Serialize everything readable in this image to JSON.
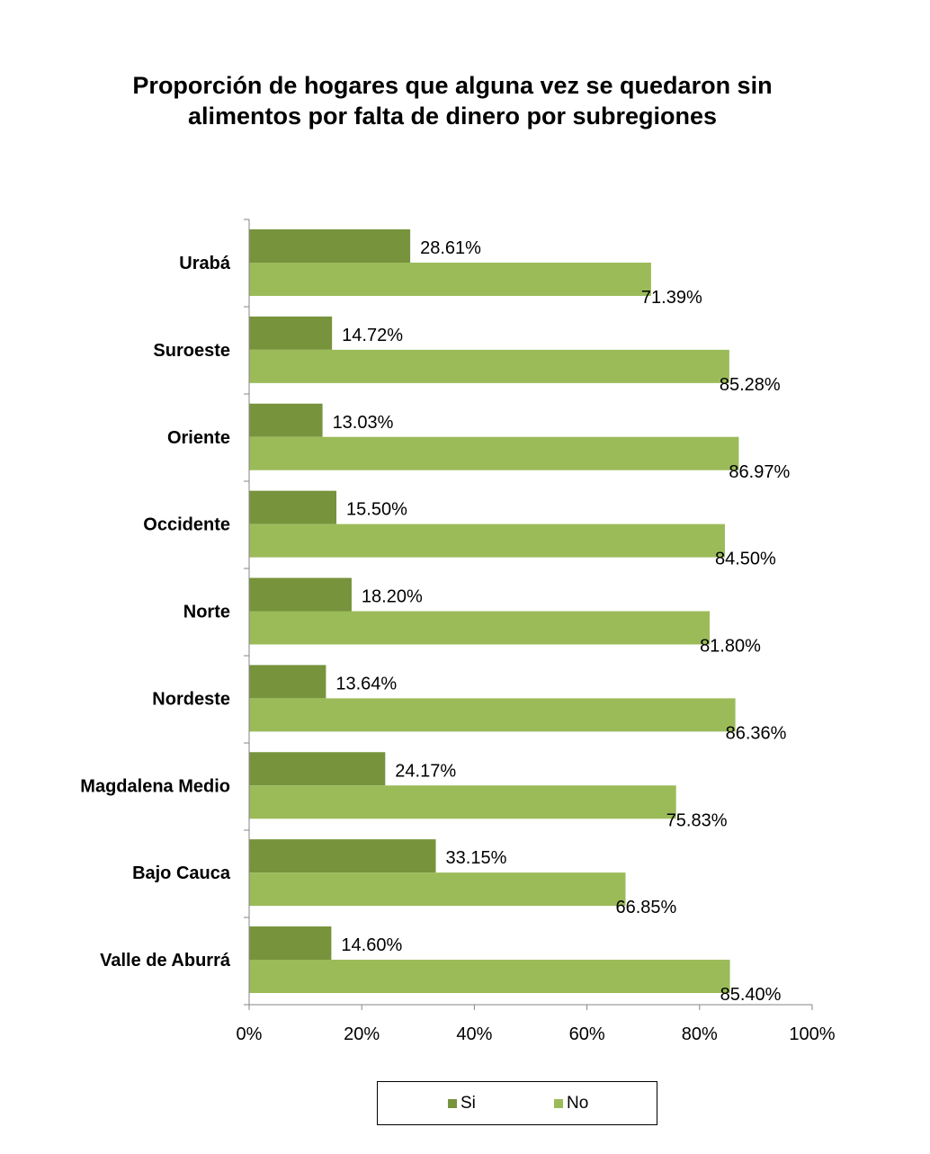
{
  "colors": {
    "si": "#77933c",
    "no": "#9bbb59",
    "axis": "#868686",
    "background": "#ffffff"
  },
  "chart_data": {
    "type": "bar",
    "orientation": "horizontal",
    "title_lines": [
      "Proporción de hogares que alguna vez se quedaron sin",
      "alimentos por falta de dinero por subregiones"
    ],
    "categories": [
      "Urabá",
      "Suroeste",
      "Oriente",
      "Occidente",
      "Norte",
      "Nordeste",
      "Magdalena Medio",
      "Bajo Cauca",
      "Valle de Aburrá"
    ],
    "series": [
      {
        "name": "Si",
        "values": [
          28.61,
          14.72,
          13.03,
          15.5,
          18.2,
          13.64,
          24.17,
          33.15,
          14.6
        ],
        "labels": [
          "28.61%",
          "14.72%",
          "13.03%",
          "15.50%",
          "18.20%",
          "13.64%",
          "24.17%",
          "33.15%",
          "14.60%"
        ]
      },
      {
        "name": "No",
        "values": [
          71.39,
          85.28,
          86.97,
          84.5,
          81.8,
          86.36,
          75.83,
          66.85,
          85.4
        ],
        "labels": [
          "71.39%",
          "85.28%",
          "86.97%",
          "84.50%",
          "81.80%",
          "86.36%",
          "75.83%",
          "66.85%",
          "85.40%"
        ]
      }
    ],
    "xlim": [
      0,
      100
    ],
    "x_ticks": [
      0,
      20,
      40,
      60,
      80,
      100
    ],
    "x_tick_labels": [
      "0%",
      "20%",
      "40%",
      "60%",
      "80%",
      "100%"
    ],
    "xlabel": "",
    "ylabel": "",
    "grid": false,
    "legend_position": "bottom"
  }
}
